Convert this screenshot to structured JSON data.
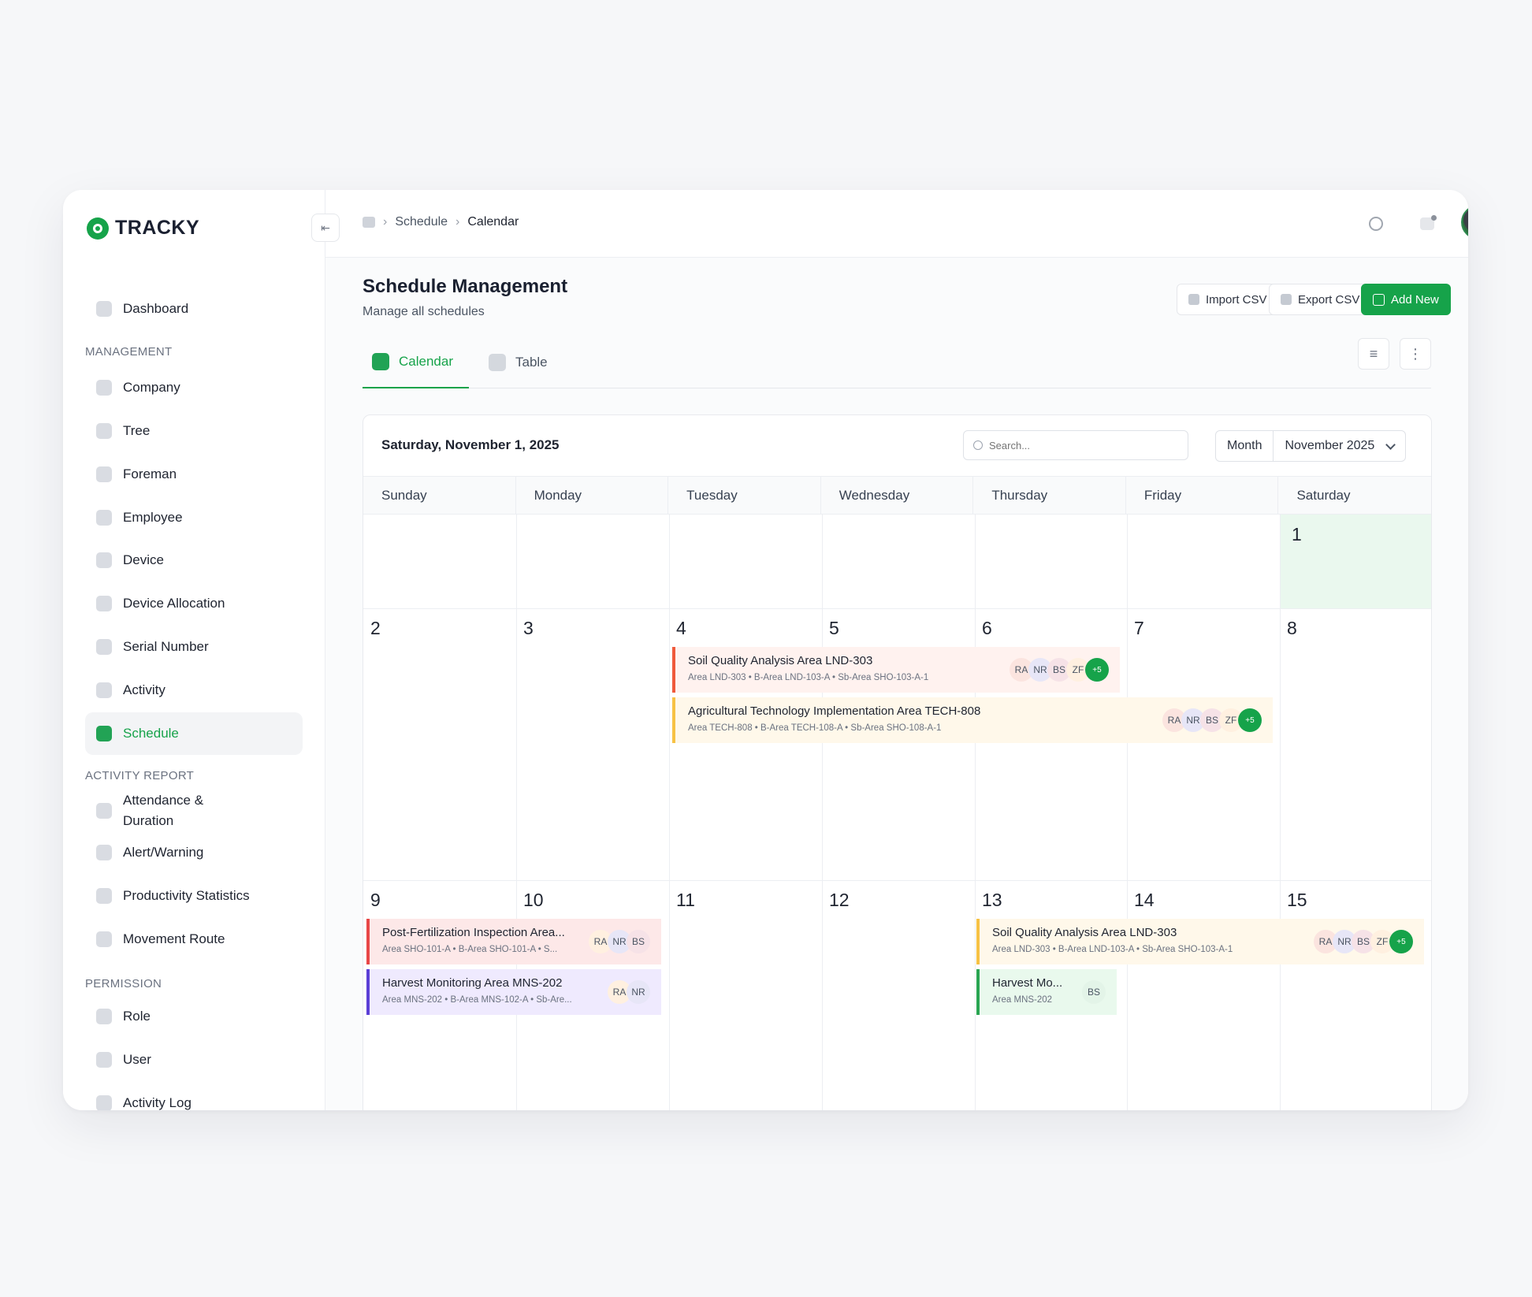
{
  "app": {
    "brand": "TRACKY"
  },
  "sidebar": {
    "collapse_icon": "collapse-left-icon",
    "top_items": [
      {
        "label": "Dashboard",
        "icon": "home-icon"
      }
    ],
    "sections": [
      {
        "title": "MANAGEMENT",
        "items": [
          {
            "label": "Company",
            "icon": "building-icon"
          },
          {
            "label": "Tree",
            "icon": "tree-icon"
          },
          {
            "label": "Foreman",
            "icon": "foreman-icon"
          },
          {
            "label": "Employee",
            "icon": "users-icon"
          },
          {
            "label": "Device",
            "icon": "device-icon"
          },
          {
            "label": "Device Allocation",
            "icon": "link-icon"
          },
          {
            "label": "Serial Number",
            "icon": "barcode-icon"
          },
          {
            "label": "Activity",
            "icon": "activity-icon"
          },
          {
            "label": "Schedule",
            "icon": "calendar-icon",
            "active": true
          }
        ]
      },
      {
        "title": "ACTIVITY REPORT",
        "items": [
          {
            "label": "Attendance &\nDuration",
            "icon": "clock-icon"
          },
          {
            "label": "Alert/Warning",
            "icon": "alert-icon"
          },
          {
            "label": "Productivity Statistics",
            "icon": "chart-icon"
          },
          {
            "label": "Movement Route",
            "icon": "route-icon"
          }
        ]
      },
      {
        "title": "PERMISSION",
        "items": [
          {
            "label": "Role",
            "icon": "role-icon"
          },
          {
            "label": "User",
            "icon": "user-icon"
          },
          {
            "label": "Activity Log",
            "icon": "code-icon"
          }
        ]
      }
    ]
  },
  "topbar": {
    "breadcrumb": [
      "Schedule",
      "Calendar"
    ],
    "home_icon": "calendar-icon"
  },
  "page": {
    "title": "Schedule Management",
    "subtitle": "Manage all schedules",
    "buttons": {
      "import": "Import CSV",
      "export": "Export CSV",
      "add": "Add New"
    }
  },
  "tabs": [
    {
      "label": "Calendar",
      "active": true
    },
    {
      "label": "Table",
      "active": false
    }
  ],
  "calendar": {
    "selected_date": "Saturday, November 1, 2025",
    "search_placeholder": "Search...",
    "view": "Month",
    "period": "November 2025",
    "weekdays": [
      "Sunday",
      "Monday",
      "Tuesday",
      "Wednesday",
      "Thursday",
      "Friday",
      "Saturday"
    ],
    "days": [
      "1",
      "2",
      "3",
      "4",
      "5",
      "6",
      "7",
      "8",
      "9",
      "10",
      "11",
      "12",
      "13",
      "14",
      "15"
    ],
    "events": [
      {
        "title": "Soil Quality Analysis Area LND-303",
        "meta": "Area LND-303  •  B-Area LND-103-A  •  Sb-Area SHO-103-A-1",
        "people": [
          "RA",
          "NR",
          "BS",
          "ZF"
        ],
        "extra": "+5",
        "color": "#ef5a3c"
      },
      {
        "title": "Agricultural Technology Implementation Area TECH-808",
        "meta": "Area TECH-808  •  B-Area TECH-108-A  •  Sb-Area SHO-108-A-1",
        "people": [
          "RA",
          "NR",
          "BS",
          "ZF"
        ],
        "extra": "+5",
        "color": "#f7c245"
      },
      {
        "title": "Post-Fertilization Inspection Area...",
        "meta": "Area SHO-101-A  •  B-Area SHO-101-A  •  S...",
        "people": [
          "RA",
          "NR",
          "BS"
        ],
        "color": "#e84747"
      },
      {
        "title": "Harvest Monitoring Area MNS-202",
        "meta": "Area MNS-202  •  B-Area MNS-102-A  •  Sb-Are...",
        "people": [
          "RA",
          "NR"
        ],
        "color": "#5b3fd6"
      },
      {
        "title": "Soil Quality Analysis Area LND-303",
        "meta": "Area LND-303  •  B-Area LND-103-A  •  Sb-Area SHO-103-A-1",
        "people": [
          "RA",
          "NR",
          "BS",
          "ZF"
        ],
        "extra": "+5",
        "color": "#f7c245"
      },
      {
        "title": "Harvest Mo...",
        "meta": "Area MNS-202",
        "people": [
          "BS"
        ],
        "color": "#2aa552"
      }
    ]
  }
}
